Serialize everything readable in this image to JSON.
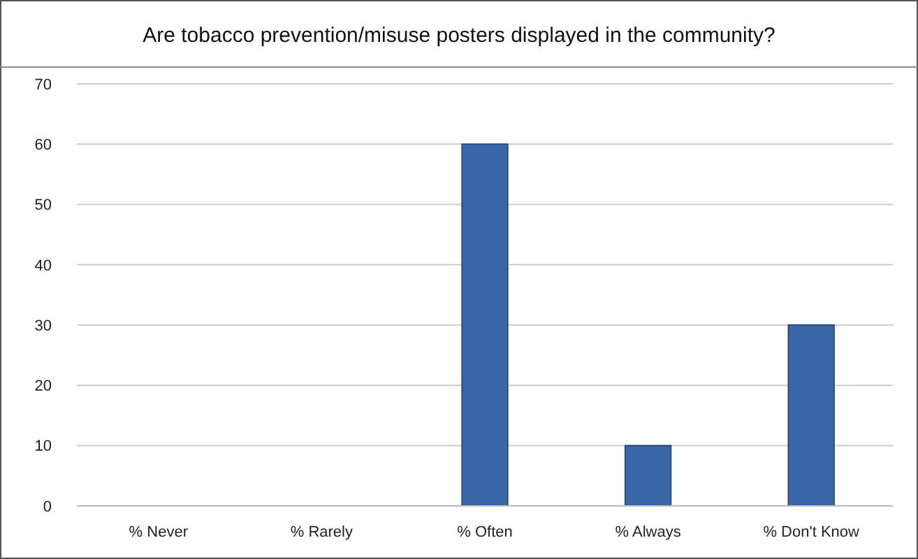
{
  "chart_data": {
    "type": "bar",
    "title": "Are tobacco prevention/misuse posters displayed in the community?",
    "categories": [
      "% Never",
      "% Rarely",
      "% Often",
      "% Always",
      "% Don't Know"
    ],
    "values": [
      0,
      0,
      60,
      10,
      30
    ],
    "color": "#3b67a8",
    "ylim": [
      0,
      70
    ],
    "yticks": [
      0,
      10,
      20,
      30,
      40,
      50,
      60,
      70
    ],
    "grid": "y"
  }
}
